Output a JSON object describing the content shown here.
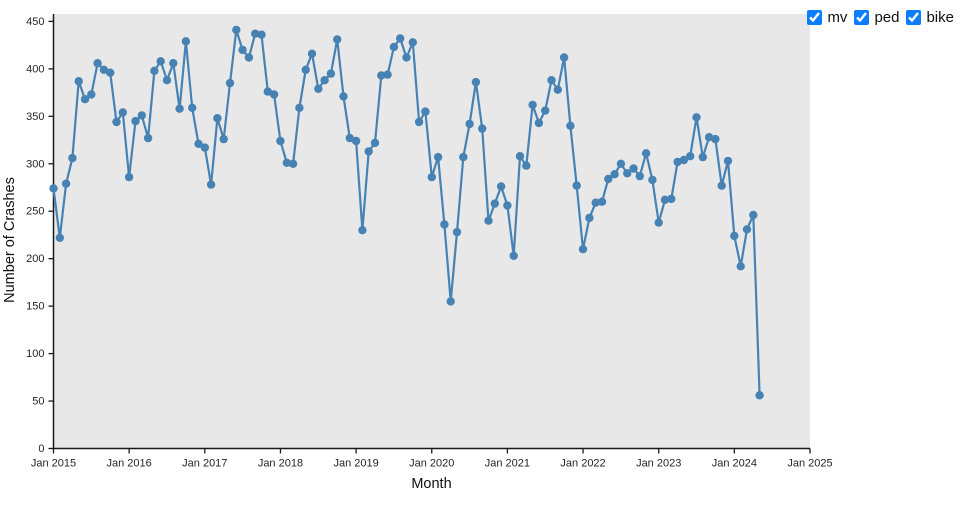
{
  "legend": {
    "items": [
      {
        "label": "mv",
        "checked": true
      },
      {
        "label": "ped",
        "checked": true
      },
      {
        "label": "bike",
        "checked": true
      }
    ],
    "checkbox_accent": "#0d7dff"
  },
  "chart_data": {
    "type": "line",
    "title": "",
    "xlabel": "Month",
    "ylabel": "Number of Crashes",
    "x_start": "Jan 2015",
    "x_interval": "monthly",
    "x_tick_labels": [
      "Jan 2015",
      "Jan 2016",
      "Jan 2017",
      "Jan 2018",
      "Jan 2019",
      "Jan 2020",
      "Jan 2021",
      "Jan 2022",
      "Jan 2023",
      "Jan 2024",
      "Jan 2025"
    ],
    "xlim_months": 120,
    "ylim": [
      0,
      450
    ],
    "y_ticks": [
      0,
      50,
      100,
      150,
      200,
      250,
      300,
      350,
      400,
      450
    ],
    "grid": false,
    "legend_position": "top-right",
    "plot_bg": "#e8e8e8",
    "axis_color": "#1a1a1a",
    "series": [
      {
        "name": "mv",
        "color": "#4682b4",
        "marker": "circle",
        "values": [
          274,
          222,
          279,
          306,
          387,
          368,
          373,
          406,
          399,
          396,
          344,
          354,
          286,
          345,
          351,
          327,
          398,
          408,
          388,
          406,
          358,
          429,
          359,
          321,
          317,
          278,
          348,
          326,
          385,
          441,
          420,
          412,
          437,
          436,
          376,
          373,
          324,
          301,
          300,
          359,
          399,
          416,
          379,
          388,
          395,
          431,
          371,
          327,
          324,
          230,
          313,
          322,
          393,
          394,
          423,
          432,
          412,
          428,
          344,
          355,
          286,
          307,
          236,
          155,
          228,
          307,
          342,
          386,
          337,
          240,
          258,
          276,
          256,
          203,
          308,
          298,
          362,
          343,
          356,
          388,
          378,
          412,
          340,
          277,
          210,
          243,
          259,
          260,
          284,
          289,
          300,
          290,
          295,
          287,
          311,
          283,
          238,
          262,
          263,
          302,
          304,
          308,
          349,
          307,
          328,
          326,
          277,
          303,
          224,
          192,
          231,
          246,
          56
        ]
      }
    ]
  }
}
